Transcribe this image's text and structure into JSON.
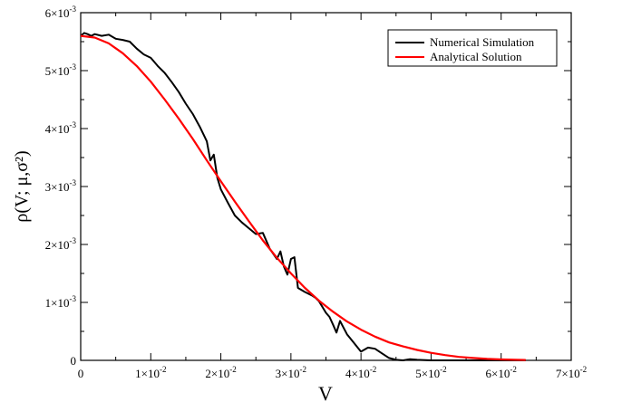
{
  "chart_data": {
    "type": "line",
    "xlabel": "V",
    "ylabel": "ρ(V; μ,σ²)",
    "xlim": [
      0,
      0.07
    ],
    "ylim": [
      0,
      0.006
    ],
    "x_ticks": [
      {
        "value": 0,
        "label": "0"
      },
      {
        "value": 0.01,
        "label": "1×10",
        "exp": "-2"
      },
      {
        "value": 0.02,
        "label": "2×10",
        "exp": "-2"
      },
      {
        "value": 0.03,
        "label": "3×10",
        "exp": "-2"
      },
      {
        "value": 0.04,
        "label": "4×10",
        "exp": "-2"
      },
      {
        "value": 0.05,
        "label": "5×10",
        "exp": "-2"
      },
      {
        "value": 0.06,
        "label": "6×10",
        "exp": "-2"
      },
      {
        "value": 0.07,
        "label": "7×10",
        "exp": "-2"
      }
    ],
    "y_ticks": [
      {
        "value": 0,
        "label": "0"
      },
      {
        "value": 0.001,
        "label": "1×10",
        "exp": "-3"
      },
      {
        "value": 0.002,
        "label": "2×10",
        "exp": "-3"
      },
      {
        "value": 0.003,
        "label": "3×10",
        "exp": "-3"
      },
      {
        "value": 0.004,
        "label": "4×10",
        "exp": "-3"
      },
      {
        "value": 0.005,
        "label": "5×10",
        "exp": "-3"
      },
      {
        "value": 0.006,
        "label": "6×10",
        "exp": "-3"
      }
    ],
    "legend_position": "top-right",
    "grid": false,
    "series": [
      {
        "name": "Numerical Simulation",
        "color": "#000000",
        "x": [
          0,
          0.0005,
          0.001,
          0.0015,
          0.002,
          0.003,
          0.004,
          0.005,
          0.006,
          0.007,
          0.008,
          0.009,
          0.01,
          0.011,
          0.012,
          0.013,
          0.014,
          0.015,
          0.016,
          0.017,
          0.018,
          0.0185,
          0.019,
          0.0195,
          0.02,
          0.021,
          0.022,
          0.023,
          0.024,
          0.025,
          0.026,
          0.027,
          0.028,
          0.0285,
          0.029,
          0.0295,
          0.03,
          0.0305,
          0.031,
          0.032,
          0.033,
          0.0335,
          0.034,
          0.035,
          0.0355,
          0.036,
          0.0365,
          0.037,
          0.038,
          0.039,
          0.04,
          0.041,
          0.042,
          0.043,
          0.044,
          0.045,
          0.046,
          0.047,
          0.048,
          0.05,
          0.052,
          0.054,
          0.056,
          0.058,
          0.06,
          0.062,
          0.0635
        ],
        "y": [
          0.0056,
          0.00565,
          0.00563,
          0.0056,
          0.00563,
          0.0056,
          0.00562,
          0.00555,
          0.00553,
          0.0055,
          0.00538,
          0.00528,
          0.00522,
          0.00508,
          0.00496,
          0.0048,
          0.00463,
          0.00443,
          0.00425,
          0.00403,
          0.00378,
          0.00345,
          0.00355,
          0.00315,
          0.00295,
          0.00272,
          0.0025,
          0.00238,
          0.00228,
          0.00218,
          0.0022,
          0.00192,
          0.00175,
          0.00188,
          0.00162,
          0.00148,
          0.00175,
          0.00178,
          0.00125,
          0.00118,
          0.00112,
          0.00108,
          0.00102,
          0.00082,
          0.00075,
          0.00062,
          0.00048,
          0.00068,
          0.00045,
          0.0003,
          0.00015,
          0.00022,
          0.0002,
          0.00012,
          4e-05,
          1e-05,
          0,
          2e-05,
          1e-05,
          0,
          0,
          0,
          0,
          0,
          0,
          0,
          0
        ]
      },
      {
        "name": "Analytical Solution",
        "color": "#ff0000",
        "x": [
          0,
          0.002,
          0.004,
          0.006,
          0.008,
          0.01,
          0.012,
          0.014,
          0.016,
          0.018,
          0.02,
          0.022,
          0.024,
          0.026,
          0.028,
          0.03,
          0.032,
          0.034,
          0.036,
          0.038,
          0.04,
          0.042,
          0.044,
          0.046,
          0.048,
          0.05,
          0.052,
          0.054,
          0.056,
          0.058,
          0.06,
          0.062,
          0.0635
        ],
        "y": [
          0.0056,
          0.00557,
          0.00547,
          0.0053,
          0.00508,
          0.00481,
          0.0045,
          0.00417,
          0.00382,
          0.00345,
          0.00309,
          0.00274,
          0.0024,
          0.00207,
          0.00177,
          0.0015,
          0.00125,
          0.00103,
          0.00084,
          0.00067,
          0.00053,
          0.00041,
          0.00031,
          0.00024,
          0.00018,
          0.00013,
          9e-05,
          6e-05,
          4e-05,
          2.5e-05,
          1.5e-05,
          1e-05,
          7e-06
        ]
      }
    ]
  }
}
